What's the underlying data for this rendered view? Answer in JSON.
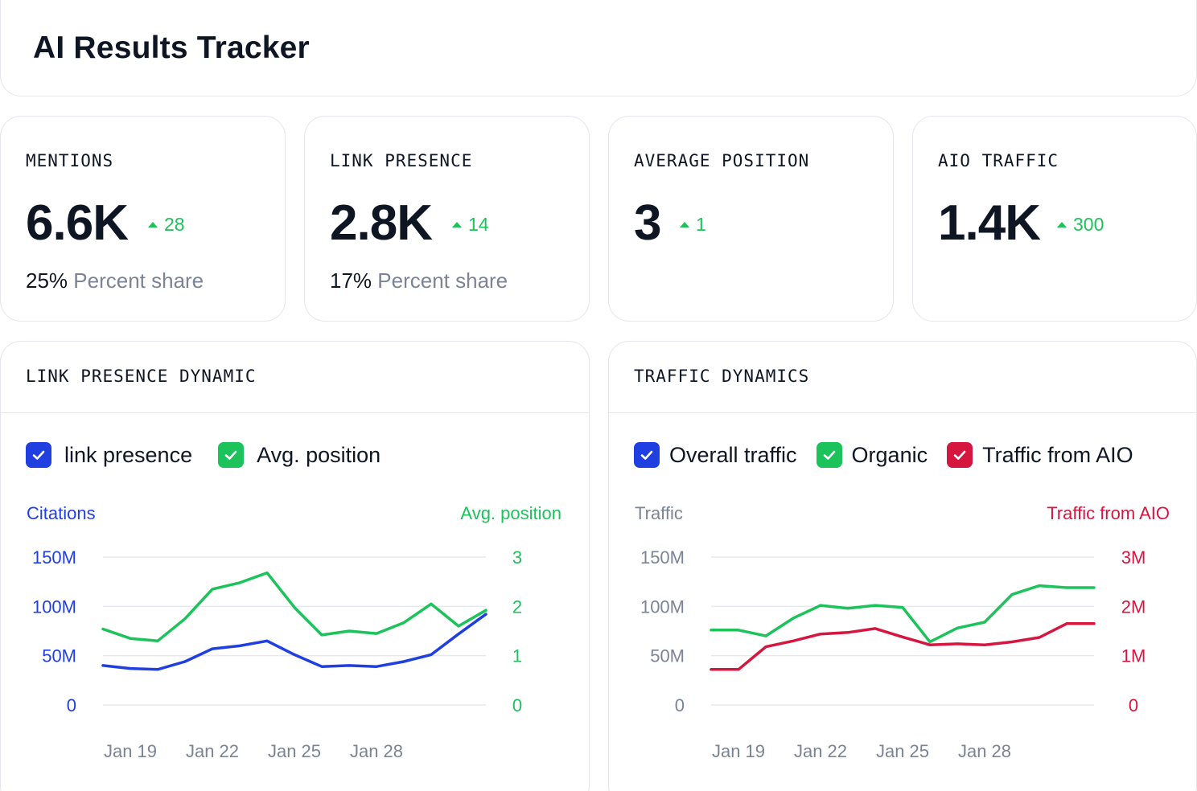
{
  "header": {
    "title": "AI Results Tracker"
  },
  "stats": [
    {
      "label": "MENTIONS",
      "value": "6.6K",
      "delta": "28",
      "share_pct": "25%",
      "share_text": "Percent share"
    },
    {
      "label": "LINK PRESENCE",
      "value": "2.8K",
      "delta": "14",
      "share_pct": "17%",
      "share_text": "Percent share"
    },
    {
      "label": "AVERAGE POSITION",
      "value": "3",
      "delta": "1"
    },
    {
      "label": "AIO TRAFFIC",
      "value": "1.4K",
      "delta": "300"
    }
  ],
  "colors": {
    "blue": "#1f3fe0",
    "green": "#1cc35b",
    "red": "#d5173f",
    "grid": "#e6e9ee",
    "muted": "#7a8496"
  },
  "link_chart": {
    "title": "LINK PRESENCE DYNAMIC",
    "legend": [
      {
        "label": "link presence",
        "color": "#1f3fe0"
      },
      {
        "label": "Avg. position",
        "color": "#1cc35b"
      }
    ]
  },
  "traffic_chart": {
    "title": "TRAFFIC DYNAMICS",
    "legend": [
      {
        "label": "Overall traffic",
        "color": "#1f3fe0"
      },
      {
        "label": "Organic",
        "color": "#1cc35b"
      },
      {
        "label": "Traffic from AIO",
        "color": "#d5173f"
      }
    ]
  },
  "chart_data": [
    {
      "type": "line",
      "left_axis_label": "Citations",
      "right_axis_label": "Avg. position",
      "left_ticks": [
        "150M",
        "100M",
        "50M",
        "0"
      ],
      "right_ticks": [
        "3",
        "2",
        "1",
        "0"
      ],
      "left_range": [
        0,
        150
      ],
      "right_range": [
        0,
        3
      ],
      "x_ticks": [
        "Jan 19",
        "Jan 22",
        "Jan 25",
        "Jan 28"
      ],
      "x_tick_index": [
        1,
        4,
        7,
        10
      ],
      "series": [
        {
          "name": "link presence",
          "axis": "left",
          "color": "#1f3fe0",
          "values": [
            40,
            37,
            36,
            44,
            57,
            60,
            65,
            51,
            39,
            40,
            39,
            44,
            51,
            72,
            92
          ]
        },
        {
          "name": "Avg. position",
          "axis": "right",
          "color": "#1cc35b",
          "values": [
            1.54,
            1.35,
            1.3,
            1.75,
            2.35,
            2.48,
            2.68,
            1.98,
            1.42,
            1.5,
            1.45,
            1.67,
            2.05,
            1.6,
            1.92
          ]
        }
      ]
    },
    {
      "type": "line",
      "left_axis_label": "Traffic",
      "right_axis_label": "Traffic from AIO",
      "left_ticks": [
        "150M",
        "100M",
        "50M",
        "0"
      ],
      "right_ticks": [
        "3M",
        "2M",
        "1M",
        "0"
      ],
      "left_range": [
        0,
        150
      ],
      "right_range": [
        0,
        3
      ],
      "x_ticks": [
        "Jan 19",
        "Jan 22",
        "Jan 25",
        "Jan 28"
      ],
      "x_tick_index": [
        1,
        4,
        7,
        10
      ],
      "series": [
        {
          "name": "Organic",
          "axis": "left",
          "color": "#1cc35b",
          "values": [
            76,
            76,
            70,
            88,
            101,
            98,
            101,
            99,
            64,
            78,
            84,
            112,
            121,
            119,
            119
          ]
        },
        {
          "name": "Traffic from AIO",
          "axis": "right",
          "color": "#d5173f",
          "values": [
            0.72,
            0.72,
            1.18,
            1.3,
            1.44,
            1.47,
            1.55,
            1.38,
            1.22,
            1.24,
            1.22,
            1.28,
            1.37,
            1.65,
            1.65
          ]
        }
      ]
    }
  ]
}
